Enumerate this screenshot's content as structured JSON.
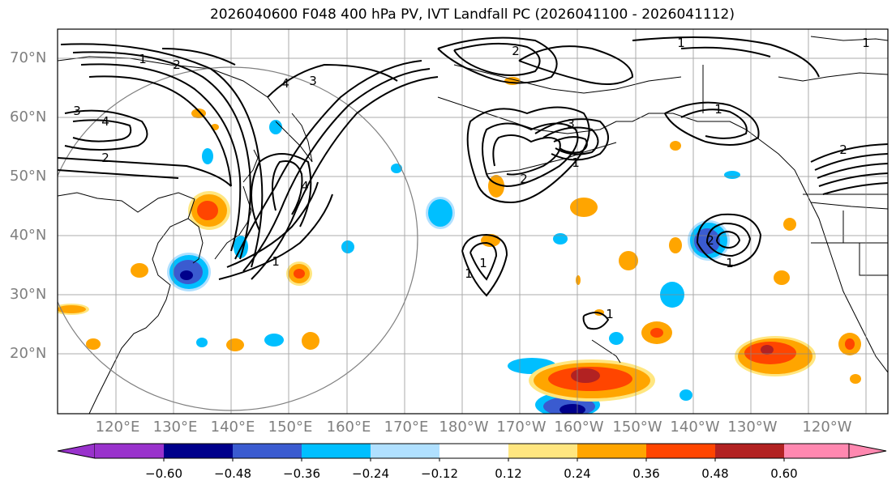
{
  "title": "2026040600 F048 400 hPa PV, IVT Landfall PC (2026041100 - 2026041112)",
  "axes": {
    "lat_labels": [
      "70°N",
      "60°N",
      "50°N",
      "40°N",
      "30°N",
      "20°N"
    ],
    "lon_labels": [
      "120°E",
      "130°E",
      "140°E",
      "150°E",
      "160°E",
      "170°E",
      "180°W",
      "170°W",
      "160°W",
      "150°W",
      "140°W",
      "130°W",
      "120°W"
    ]
  },
  "contour_labels": [
    "1",
    "2",
    "3",
    "4"
  ],
  "colorbar": {
    "ticks": [
      "−0.60",
      "−0.48",
      "−0.36",
      "−0.24",
      "−0.12",
      "0.12",
      "0.24",
      "0.36",
      "0.48",
      "0.60"
    ],
    "colors": [
      "#9932CC",
      "#00008B",
      "#3A5BD0",
      "#00BFFF",
      "#B0E0FF",
      "#FFFFFF",
      "#FFE680",
      "#FFA500",
      "#FF4500",
      "#B22222",
      "#FF88B0"
    ]
  },
  "colors": {
    "grid": "#888888",
    "contour": "#000000",
    "coast": "#000000",
    "circle": "#808080"
  }
}
